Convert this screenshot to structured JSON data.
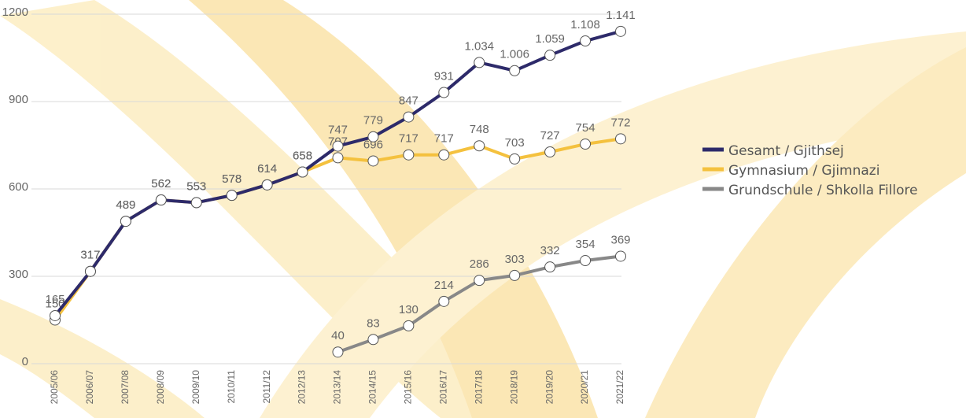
{
  "chart_data": {
    "type": "line",
    "categories": [
      "2005/06",
      "2006/07",
      "2007/08",
      "2008/09",
      "2009/10",
      "2010/11",
      "2011/12",
      "2012/13",
      "2013/14",
      "2014/15",
      "2015/16",
      "2016/17",
      "2017/18",
      "2018/19",
      "2019/20",
      "2020/21",
      "2021/22"
    ],
    "series": [
      {
        "name": "Gesamt / Gjithsej",
        "color": "#2d2a6a",
        "values": [
          165,
          317,
          489,
          562,
          553,
          578,
          614,
          658,
          747,
          779,
          847,
          931,
          1034,
          1006,
          1059,
          1108,
          1141
        ],
        "value_labels": [
          "165",
          "317",
          "489",
          "562",
          "553",
          "578",
          "614",
          "658",
          "747",
          "779",
          "847",
          "931",
          "1.034",
          "1.006",
          "1.059",
          "1.108",
          "1.141"
        ]
      },
      {
        "name": "Gymnasium / Gjimnazi",
        "color": "#f4c13e",
        "values": [
          150,
          317,
          489,
          562,
          553,
          578,
          614,
          658,
          707,
          696,
          717,
          717,
          748,
          703,
          727,
          754,
          772
        ]
      },
      {
        "name": "Grundschule / Shkolla Fillore",
        "color": "#888888",
        "values": [
          null,
          null,
          null,
          null,
          null,
          null,
          null,
          null,
          40,
          83,
          130,
          214,
          286,
          303,
          332,
          354,
          369
        ]
      }
    ],
    "ylim": [
      0,
      1200
    ],
    "yticks": [
      0,
      300,
      600,
      900,
      1200
    ],
    "grid": true,
    "legend": "right"
  }
}
